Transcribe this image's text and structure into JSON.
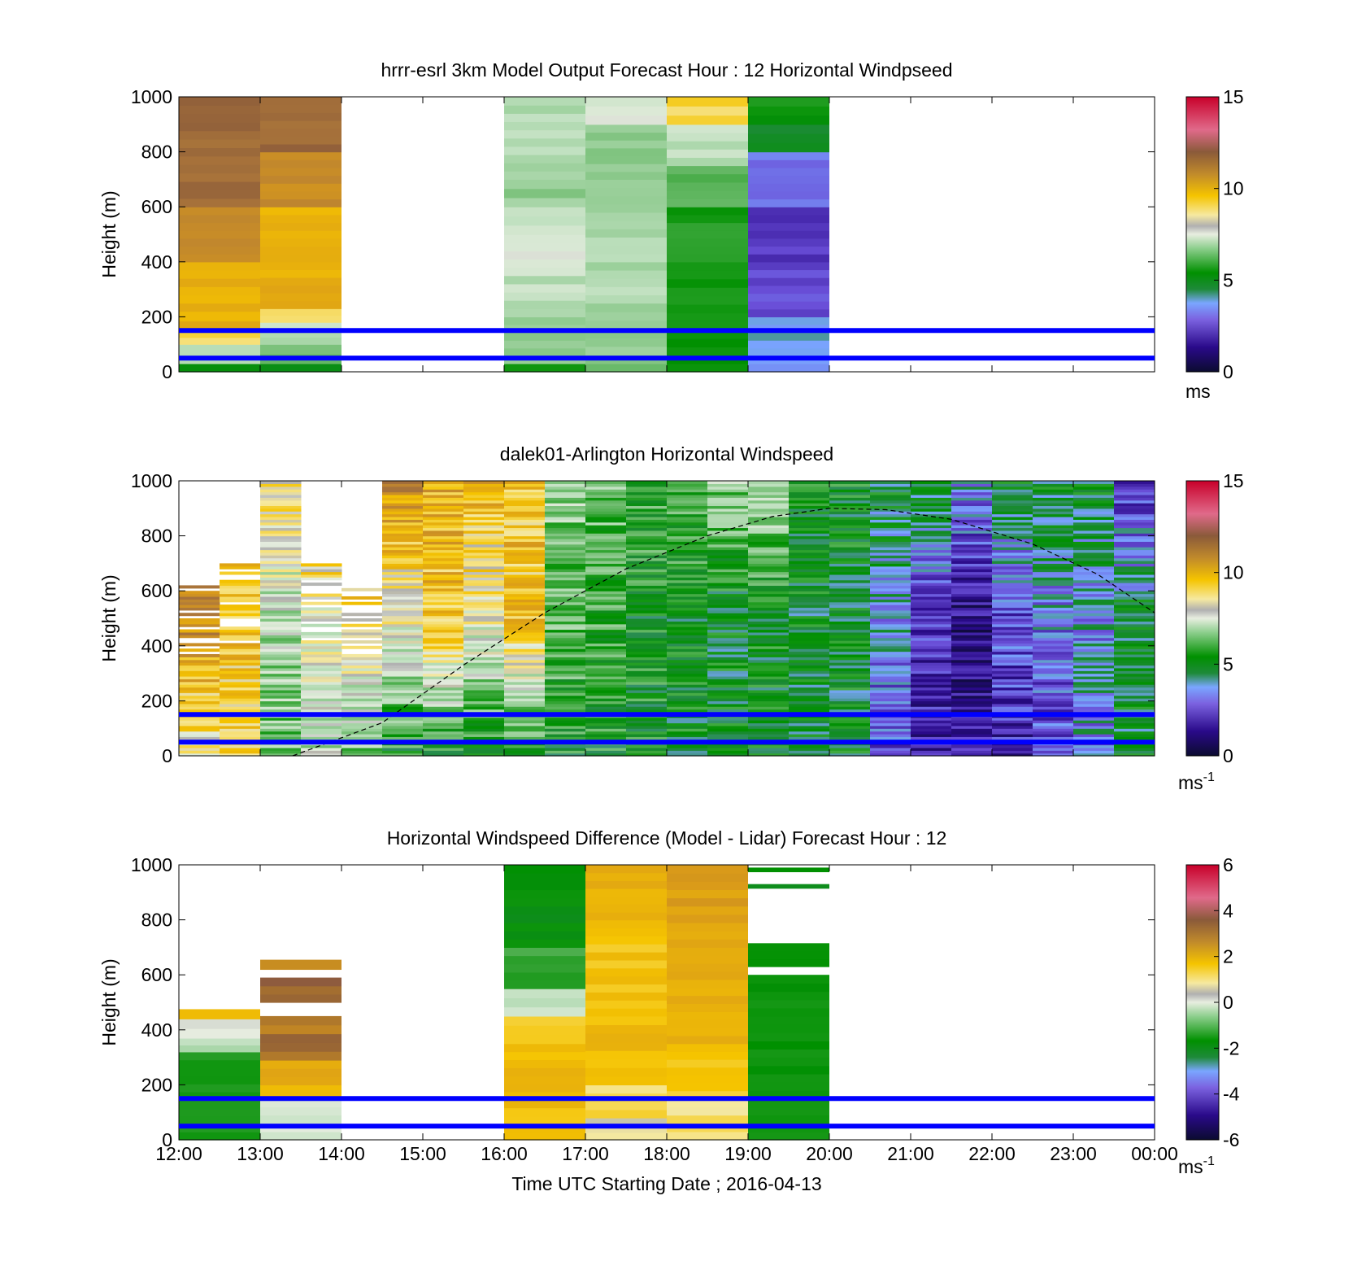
{
  "figure": {
    "xlabel": "Time UTC  Starting Date ; 2016-04-13",
    "x_tick_labels": [
      "12:00",
      "13:00",
      "14:00",
      "15:00",
      "16:00",
      "17:00",
      "18:00",
      "19:00",
      "20:00",
      "21:00",
      "22:00",
      "23:00",
      "00:00"
    ],
    "ylabel": "Height (m)",
    "y_tick_labels": [
      "0",
      "200",
      "400",
      "600",
      "800",
      "1000"
    ],
    "reference_line_color": "#0000ff",
    "reference_heights_m": [
      50,
      150
    ]
  },
  "panels": [
    {
      "title": "hrrr-esrl 3km Model Output   Forecast Hour : 12 Horizontal Windpseed",
      "colorbar": {
        "ticks": [
          "0",
          "5",
          "10",
          "15"
        ],
        "unit_main": "ms",
        "unit_sup": ""
      }
    },
    {
      "title": "dalek01-Arlington  Horizontal Windspeed",
      "colorbar": {
        "ticks": [
          "0",
          "5",
          "10",
          "15"
        ],
        "unit_main": "ms",
        "unit_sup": "-1"
      }
    },
    {
      "title": "Horizontal Windspeed Difference (Model - Lidar) Forecast Hour : 12",
      "colorbar": {
        "ticks": [
          "-6",
          "-4",
          "-2",
          "0",
          "2",
          "4",
          "6"
        ],
        "unit_main": "ms",
        "unit_sup": "-1"
      }
    }
  ],
  "chart_data": [
    {
      "type": "heatmap",
      "title": "hrrr-esrl 3km Model Output   Forecast Hour : 12 Horizontal Windpseed",
      "ylabel": "Height (m)",
      "ylim": [
        0,
        1000
      ],
      "x_range_hours_utc": [
        12,
        24
      ],
      "colorbar_range": [
        0,
        15
      ],
      "colorbar_unit": "ms",
      "reference_lines_m": [
        50,
        150
      ],
      "columns": [
        {
          "start": "12:00",
          "end": "13:00",
          "levels": [
            [
              0,
              30,
              5
            ],
            [
              30,
              100,
              7
            ],
            [
              100,
              150,
              9
            ],
            [
              150,
              220,
              10
            ],
            [
              220,
              400,
              10
            ],
            [
              400,
              600,
              11
            ],
            [
              600,
              1000,
              12
            ]
          ]
        },
        {
          "start": "13:00",
          "end": "14:00",
          "levels": [
            [
              0,
              30,
              5
            ],
            [
              30,
              100,
              6
            ],
            [
              100,
              180,
              7
            ],
            [
              180,
              230,
              9
            ],
            [
              230,
              400,
              10
            ],
            [
              400,
              600,
              10
            ],
            [
              600,
              800,
              11
            ],
            [
              800,
              1000,
              12
            ]
          ]
        },
        {
          "start": "16:00",
          "end": "17:00",
          "levels": [
            [
              0,
              30,
              5
            ],
            [
              30,
              200,
              6.5
            ],
            [
              200,
              350,
              7
            ],
            [
              350,
              500,
              7.5
            ],
            [
              500,
              600,
              7
            ],
            [
              600,
              700,
              6.5
            ],
            [
              700,
              1000,
              6.8
            ]
          ]
        },
        {
          "start": "17:00",
          "end": "18:00",
          "levels": [
            [
              0,
              30,
              6
            ],
            [
              30,
              250,
              6.5
            ],
            [
              250,
              700,
              6.8
            ],
            [
              700,
              900,
              6.3
            ],
            [
              900,
              1000,
              7.5
            ]
          ]
        },
        {
          "start": "18:00",
          "end": "19:00",
          "levels": [
            [
              0,
              60,
              5
            ],
            [
              60,
              400,
              5.2
            ],
            [
              400,
              600,
              5.3
            ],
            [
              600,
              750,
              5.8
            ],
            [
              750,
              900,
              7
            ],
            [
              900,
              1000,
              9
            ]
          ]
        },
        {
          "start": "19:00",
          "end": "20:00",
          "levels": [
            [
              0,
              30,
              3
            ],
            [
              30,
              200,
              3.5
            ],
            [
              200,
              400,
              2.5
            ],
            [
              400,
              600,
              2.2
            ],
            [
              600,
              800,
              3
            ],
            [
              800,
              900,
              4.5
            ],
            [
              900,
              1000,
              5
            ]
          ]
        }
      ]
    },
    {
      "type": "heatmap",
      "title": "dalek01-Arlington  Horizontal Windspeed",
      "ylabel": "Height (m)",
      "ylim": [
        0,
        1000
      ],
      "x_range_hours_utc": [
        12,
        24
      ],
      "colorbar_range": [
        0,
        15
      ],
      "colorbar_unit": "ms-1",
      "reference_lines_m": [
        50,
        150
      ],
      "overlay_curve": {
        "style": "dashed",
        "color": "#000000",
        "x_hours_utc": [
          13.4,
          14.5,
          15.5,
          16.5,
          17.5,
          18.5,
          19.3,
          20.0,
          20.7,
          21.5,
          22.5,
          23.3,
          24.0
        ],
        "height_m": [
          0,
          120,
          330,
          520,
          680,
          800,
          870,
          900,
          895,
          860,
          770,
          660,
          520
        ]
      },
      "x_hours_utc": [
        12.0,
        12.5,
        13.0,
        13.5,
        14.0,
        14.5,
        15.0,
        15.5,
        16.0,
        16.5,
        17.0,
        17.5,
        18.0,
        18.5,
        19.0,
        19.5,
        20.0,
        20.5,
        21.0,
        21.5,
        22.0,
        22.5,
        23.0,
        23.5
      ],
      "column_profiles": [
        {
          "bottom_speed": 8,
          "mid_speed": 11,
          "top_speed": 12,
          "data_top_m": 640
        },
        {
          "bottom_speed": 9,
          "mid_speed": 9.5,
          "top_speed": 10,
          "data_top_m": 700
        },
        {
          "bottom_speed": 6,
          "mid_speed": 7,
          "top_speed": 9,
          "data_top_m": 1000
        },
        {
          "bottom_speed": 7,
          "mid_speed": 8,
          "top_speed": 10,
          "data_top_m": 700
        },
        {
          "bottom_speed": 6,
          "mid_speed": 9,
          "top_speed": 10,
          "data_top_m": 620
        },
        {
          "bottom_speed": 5,
          "mid_speed": 8,
          "top_speed": 11,
          "data_top_m": 1000
        },
        {
          "bottom_speed": 5,
          "mid_speed": 9.5,
          "top_speed": 10,
          "data_top_m": 1000
        },
        {
          "bottom_speed": 5,
          "mid_speed": 8,
          "top_speed": 10,
          "data_top_m": 1000
        },
        {
          "bottom_speed": 5,
          "mid_speed": 9.5,
          "top_speed": 9.5,
          "data_top_m": 1000
        },
        {
          "bottom_speed": 5,
          "mid_speed": 6,
          "top_speed": 6.5,
          "data_top_m": 1000
        },
        {
          "bottom_speed": 5,
          "mid_speed": 5.5,
          "top_speed": 6,
          "data_top_m": 1000
        },
        {
          "bottom_speed": 5,
          "mid_speed": 5,
          "top_speed": 5.5,
          "data_top_m": 1000
        },
        {
          "bottom_speed": 4.8,
          "mid_speed": 4.6,
          "top_speed": 6,
          "data_top_m": 1000
        },
        {
          "bottom_speed": 4.8,
          "mid_speed": 4.5,
          "top_speed": 6.5,
          "data_top_m": 1000
        },
        {
          "bottom_speed": 4.8,
          "mid_speed": 4.8,
          "top_speed": 7,
          "data_top_m": 1000
        },
        {
          "bottom_speed": 4.5,
          "mid_speed": 4.6,
          "top_speed": 5,
          "data_top_m": 1000
        },
        {
          "bottom_speed": 4.6,
          "mid_speed": 4.5,
          "top_speed": 4.8,
          "data_top_m": 1000
        },
        {
          "bottom_speed": 2.5,
          "mid_speed": 3.5,
          "top_speed": 4.6,
          "data_top_m": 1000
        },
        {
          "bottom_speed": 1.8,
          "mid_speed": 2.0,
          "top_speed": 4.8,
          "data_top_m": 1000
        },
        {
          "bottom_speed": 1.5,
          "mid_speed": 1.2,
          "top_speed": 3.5,
          "data_top_m": 1000
        },
        {
          "bottom_speed": 1.8,
          "mid_speed": 2.5,
          "top_speed": 4.5,
          "data_top_m": 1000
        },
        {
          "bottom_speed": 2.3,
          "mid_speed": 3.2,
          "top_speed": 4.6,
          "data_top_m": 1000
        },
        {
          "bottom_speed": 3.2,
          "mid_speed": 3.5,
          "top_speed": 4.6,
          "data_top_m": 1000
        },
        {
          "bottom_speed": 4.5,
          "mid_speed": 4.6,
          "top_speed": 2.0,
          "data_top_m": 1000
        }
      ]
    },
    {
      "type": "heatmap",
      "title": "Horizontal Windspeed Difference (Model - Lidar) Forecast Hour : 12",
      "xlabel": "Time UTC  Starting Date ; 2016-04-13",
      "ylabel": "Height (m)",
      "ylim": [
        0,
        1000
      ],
      "x_range_hours_utc": [
        12,
        24
      ],
      "colorbar_range": [
        -6,
        6
      ],
      "colorbar_unit": "ms-1",
      "reference_lines_m": [
        50,
        150
      ],
      "columns": [
        {
          "start": "12:00",
          "end": "13:00",
          "levels": [
            [
              0,
              320,
              -2.5
            ],
            [
              320,
              370,
              -1.2
            ],
            [
              370,
              440,
              -0.3
            ],
            [
              440,
              475,
              1.5
            ]
          ]
        },
        {
          "start": "13:00",
          "end": "14:00",
          "levels": [
            [
              0,
              150,
              -0.5
            ],
            [
              150,
              200,
              1.0
            ],
            [
              200,
              290,
              1.8
            ],
            [
              290,
              450,
              2.6
            ],
            [
              500,
              590,
              2.8
            ],
            [
              620,
              655,
              2.2
            ]
          ]
        },
        {
          "start": "16:00",
          "end": "17:00",
          "levels": [
            [
              0,
              350,
              1.2
            ],
            [
              350,
              450,
              0.6
            ],
            [
              450,
              550,
              -0.8
            ],
            [
              550,
              700,
              -2.0
            ],
            [
              700,
              1000,
              -3.0
            ]
          ]
        },
        {
          "start": "17:00",
          "end": "18:00",
          "levels": [
            [
              0,
              80,
              0.2
            ],
            [
              80,
              200,
              0.6
            ],
            [
              200,
              450,
              1.2
            ],
            [
              450,
              800,
              1.0
            ],
            [
              800,
              1000,
              1.5
            ]
          ]
        },
        {
          "start": "18:00",
          "end": "19:00",
          "levels": [
            [
              0,
              150,
              0.4
            ],
            [
              150,
              350,
              1.0
            ],
            [
              350,
              700,
              1.6
            ],
            [
              700,
              1000,
              1.8
            ]
          ]
        },
        {
          "start": "19:00",
          "end": "20:00",
          "levels": [
            [
              0,
              600,
              -2.8
            ],
            [
              630,
              715,
              -3.0
            ],
            [
              915,
              930,
              -3.0
            ],
            [
              975,
              990,
              -3.0
            ]
          ]
        }
      ]
    }
  ]
}
